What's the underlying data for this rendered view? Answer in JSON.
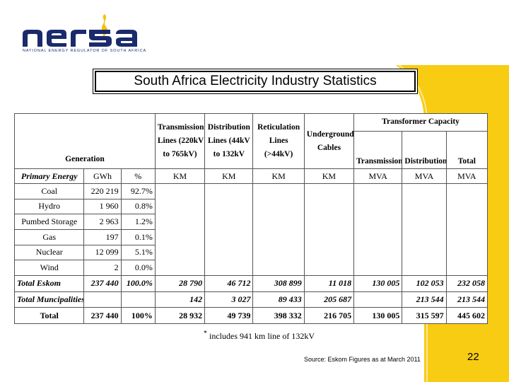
{
  "logo": {
    "wordmark": "nersa",
    "tagline": "NATIONAL ENERGY REGULATOR OF SOUTH AFRICA"
  },
  "colors": {
    "brand_blue": "#1a2a6c",
    "brand_yellow": "#f5c200",
    "band_yellow": "#f8cc12"
  },
  "slide": {
    "title": "South Africa Electricity Industry Statistics",
    "footnote": "includes 941 km line of 132kV",
    "source": "Source: Eskom Figures as at March 2011",
    "page_number": "22"
  },
  "table": {
    "headers": {
      "generation": "Generation",
      "transmission_lines": [
        "Transmission",
        "Lines (220kV",
        "to 765kV)"
      ],
      "distribution_lines": [
        "Distribution",
        "Lines (44kV",
        "to 132kV"
      ],
      "reticulation_lines": [
        "Reticulation",
        "Lines",
        "(>44kV)"
      ],
      "underground_cables": [
        "Underground",
        "Cables"
      ],
      "transformer_capacity": "Transformer Capacity",
      "transformer_cols": [
        "Transmission",
        "Distribution",
        "Total"
      ]
    },
    "units": [
      "Primary Energy",
      "GWh",
      "%",
      "KM",
      "KM",
      "KM",
      "KM",
      "MVA",
      "MVA",
      "MVA"
    ],
    "energy_rows": [
      {
        "label": "Coal",
        "gwh": "220 219",
        "pct": "92.7%"
      },
      {
        "label": "Hydro",
        "gwh": "1 960",
        "pct": "0.8%"
      },
      {
        "label": "Pumbed Storage",
        "gwh": "2 963",
        "pct": "1.2%"
      },
      {
        "label": "Gas",
        "gwh": "197",
        "pct": "0.1%"
      },
      {
        "label": "Nuclear",
        "gwh": "12 099",
        "pct": "5.1%"
      },
      {
        "label": "Wind",
        "gwh": "2",
        "pct": "0.0%"
      }
    ],
    "total_eskom": [
      "Total Eskom",
      "237 440",
      "100.0%",
      "28 790",
      "46 712",
      "308 899",
      "11 018",
      "130 005",
      "102 053",
      "232 058"
    ],
    "total_municipalities": [
      "Total Muncipalities",
      "",
      "",
      "142",
      "3 027",
      "89 433",
      "205 687",
      "",
      "213 544",
      "213 544"
    ],
    "total": [
      "Total",
      "237 440",
      "100%",
      "28 932",
      "49 739",
      "398 332",
      "216 705",
      "130 005",
      "315 597",
      "445 602"
    ]
  }
}
